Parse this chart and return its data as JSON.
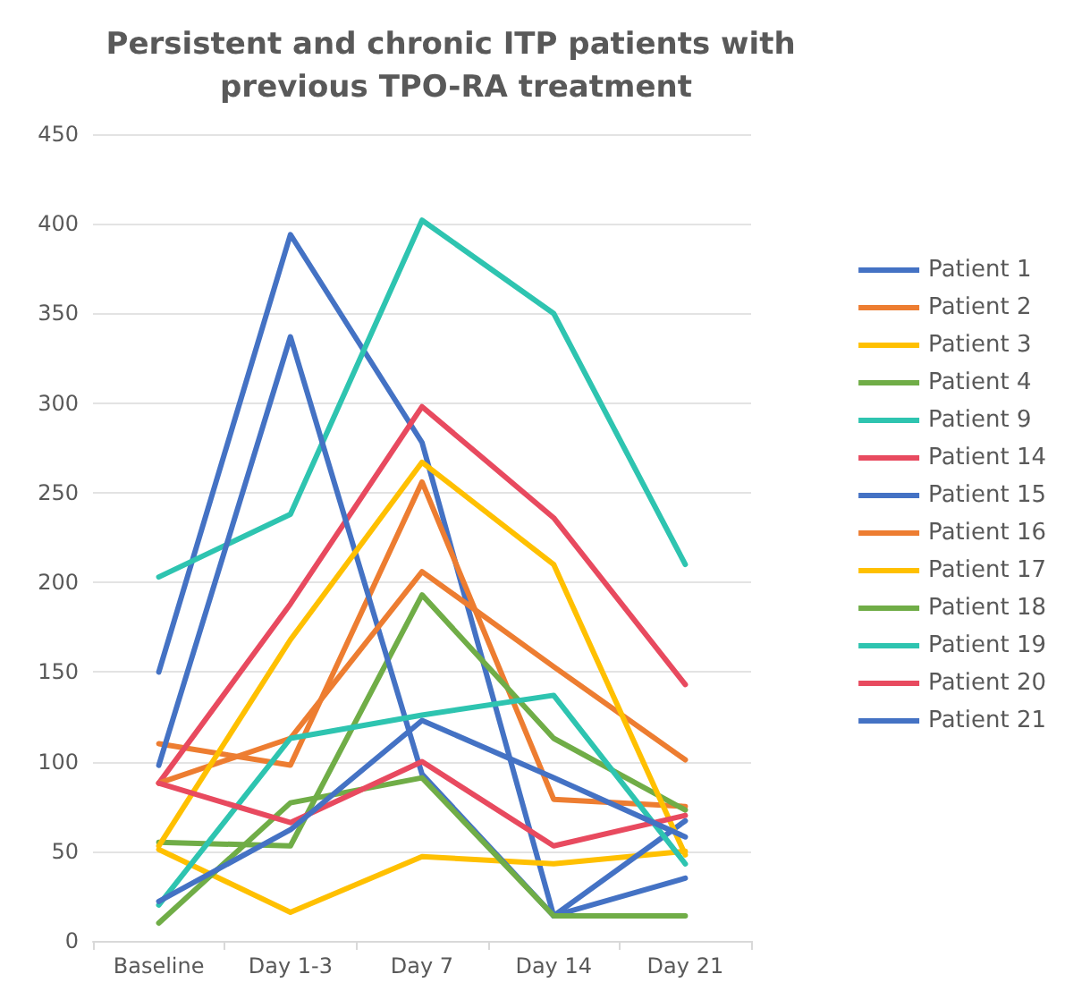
{
  "chart_data": {
    "type": "line",
    "title": "Persistent and chronic ITP patients with previous TPO-RA treatment",
    "categories": [
      "Baseline",
      "Day 1-3",
      "Day 7",
      "Day 14",
      "Day 21"
    ],
    "series": [
      {
        "name": "Patient 1",
        "color": "#4472c4",
        "values": [
          150,
          394,
          278,
          14,
          35
        ]
      },
      {
        "name": "Patient 2",
        "color": "#ed7d31",
        "values": [
          110,
          98,
          256,
          79,
          75
        ]
      },
      {
        "name": "Patient 3",
        "color": "#ffc000",
        "values": [
          51,
          16,
          47,
          43,
          50
        ]
      },
      {
        "name": "Patient 4",
        "color": "#70ad47",
        "values": [
          55,
          53,
          193,
          113,
          73
        ]
      },
      {
        "name": "Patient 9",
        "color": "#2ec4b0",
        "values": [
          203,
          238,
          402,
          350,
          210
        ]
      },
      {
        "name": "Patient 14",
        "color": "#e84a5f",
        "values": [
          88,
          188,
          298,
          236,
          143
        ]
      },
      {
        "name": "Patient 15",
        "color": "#4472c4",
        "values": [
          98,
          337,
          93,
          14,
          67
        ]
      },
      {
        "name": "Patient 16",
        "color": "#ed7d31",
        "values": [
          88,
          113,
          206,
          153,
          101
        ]
      },
      {
        "name": "Patient 17",
        "color": "#ffc000",
        "values": [
          53,
          168,
          267,
          210,
          48
        ]
      },
      {
        "name": "Patient 18",
        "color": "#70ad47",
        "values": [
          10,
          77,
          91,
          14,
          14
        ]
      },
      {
        "name": "Patient 19",
        "color": "#2ec4b0",
        "values": [
          20,
          113,
          126,
          137,
          43
        ]
      },
      {
        "name": "Patient 20",
        "color": "#e84a5f",
        "values": [
          88,
          66,
          100,
          53,
          70
        ]
      },
      {
        "name": "Patient 21",
        "color": "#4472c4",
        "values": [
          22,
          62,
          123,
          91,
          58
        ]
      }
    ],
    "ylim": [
      0,
      450
    ],
    "yticks": [
      0,
      50,
      100,
      150,
      200,
      250,
      300,
      350,
      400,
      450
    ],
    "grid": "y",
    "legend": "right",
    "marker": "none",
    "line_style": "solid"
  }
}
